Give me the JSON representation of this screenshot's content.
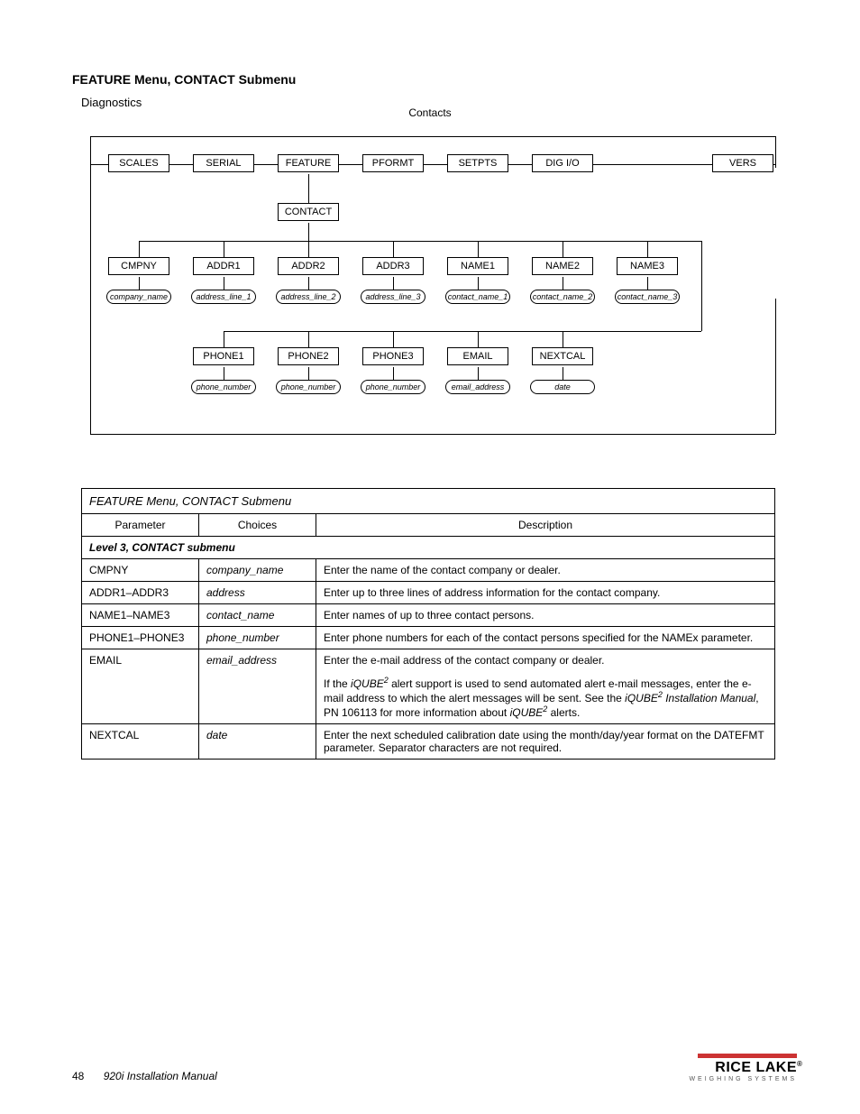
{
  "header": {
    "section_title": "FEATURE Menu, CONTACT Submenu",
    "subtitle": "Diagnostics",
    "contacts_label": "Contacts"
  },
  "diagram": {
    "row1": [
      "SCALES",
      "SERIAL",
      "FEATURE",
      "PFORMT",
      "SETPTS",
      "DIG I/O",
      "VERS"
    ],
    "row2": [
      "CONTACT"
    ],
    "row3_boxes": [
      "CMPNY",
      "ADDR1",
      "ADDR2",
      "ADDR3",
      "NAME1",
      "NAME2",
      "NAME3"
    ],
    "row3_vals": [
      "company_name",
      "address_line_1",
      "address_line_2",
      "address_line_3",
      "contact_name_1",
      "contact_name_2",
      "contact_name_3"
    ],
    "row4_boxes": [
      "PHONE1",
      "PHONE2",
      "PHONE3",
      "EMAIL",
      "NEXTCAL"
    ],
    "row4_vals": [
      "phone_number",
      "phone_number",
      "phone_number",
      "email_address",
      "date"
    ]
  },
  "table": {
    "caption": "FEATURE Menu, CONTACT Submenu",
    "headers": [
      "Parameter",
      "Choices",
      "Description"
    ],
    "level_row": "Level 3, CONTACT submenu",
    "rows": [
      {
        "param": "CMPNY",
        "choices": "company_name",
        "desc": [
          "Enter the name of the contact company or dealer."
        ]
      },
      {
        "param": "ADDR1–ADDR3",
        "choices": "address",
        "desc": [
          "Enter up to three lines of address information for the contact company."
        ]
      },
      {
        "param": "NAME1–NAME3",
        "choices": "contact_name",
        "desc": [
          "Enter names of up to three contact persons."
        ]
      },
      {
        "param": "PHONE1–PHONE3",
        "choices": "phone_number",
        "desc": [
          "Enter phone numbers for each of the contact persons specified for the NAMEx parameter."
        ]
      },
      {
        "param": "EMAIL",
        "choices": "email_address",
        "desc": [
          "Enter the e-mail address of the contact company or dealer.",
          "If the <em>iQUBE<sup>2</sup></em> alert support is used to send automated alert e-mail messages, enter the e-mail address to which the alert messages will be sent. See the <em>iQUBE<sup>2</sup> Installation Manual</em>, PN 106113 for more information about <em>iQUBE<sup>2</sup></em> alerts."
        ]
      },
      {
        "param": "NEXTCAL",
        "choices": "date",
        "desc": [
          "Enter the next scheduled calibration date using the month/day/year format on the DATEFMT parameter. Separator characters are not required."
        ]
      }
    ],
    "col_widths": [
      "130px",
      "130px",
      "auto"
    ]
  },
  "footer": {
    "page": "48",
    "manual": "920i Installation Manual",
    "logo_name": "RICE LAKE",
    "logo_sys": "WEIGHING SYSTEMS"
  },
  "colors": {
    "accent": "#c33",
    "line": "#000",
    "bg": "#fff"
  }
}
